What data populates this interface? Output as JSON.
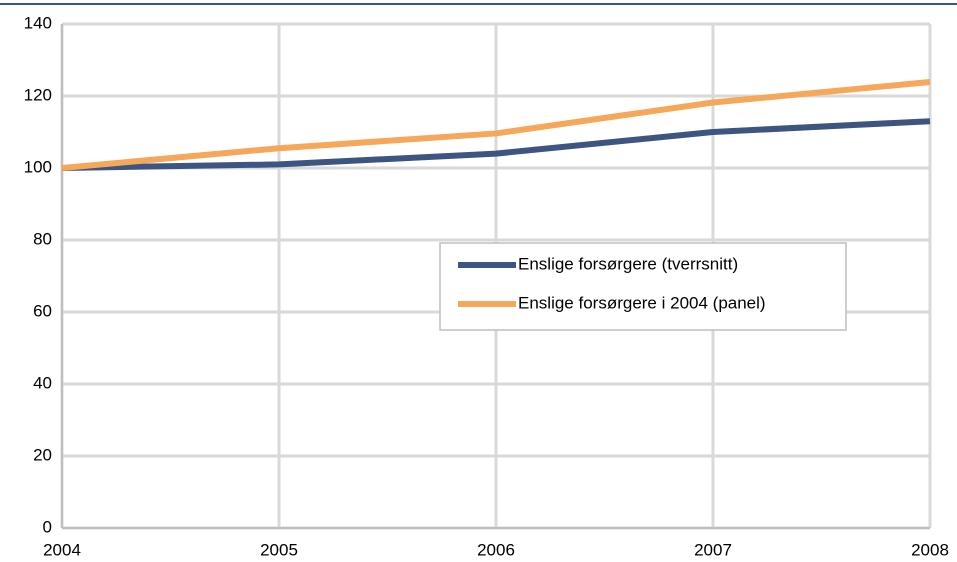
{
  "chart_data": {
    "type": "line",
    "x": [
      2004,
      2005,
      2006,
      2007,
      2008
    ],
    "xlim": [
      2004,
      2008
    ],
    "xticks": [
      2004,
      2005,
      2006,
      2007,
      2008
    ],
    "ylim": [
      0,
      140
    ],
    "yticks": [
      0,
      20,
      40,
      60,
      80,
      100,
      120,
      140
    ],
    "grid": true,
    "legend": "right",
    "series": [
      {
        "name": "Enslige forsørgere (tverrsnitt)",
        "color": "#3c5581",
        "values": [
          100,
          101,
          104,
          110,
          113
        ]
      },
      {
        "name": "Enslige forsørgere i 2004 (panel)",
        "color": "#f5a75a",
        "values": [
          100,
          105.5,
          109.6,
          118.2,
          123.9
        ]
      }
    ]
  }
}
